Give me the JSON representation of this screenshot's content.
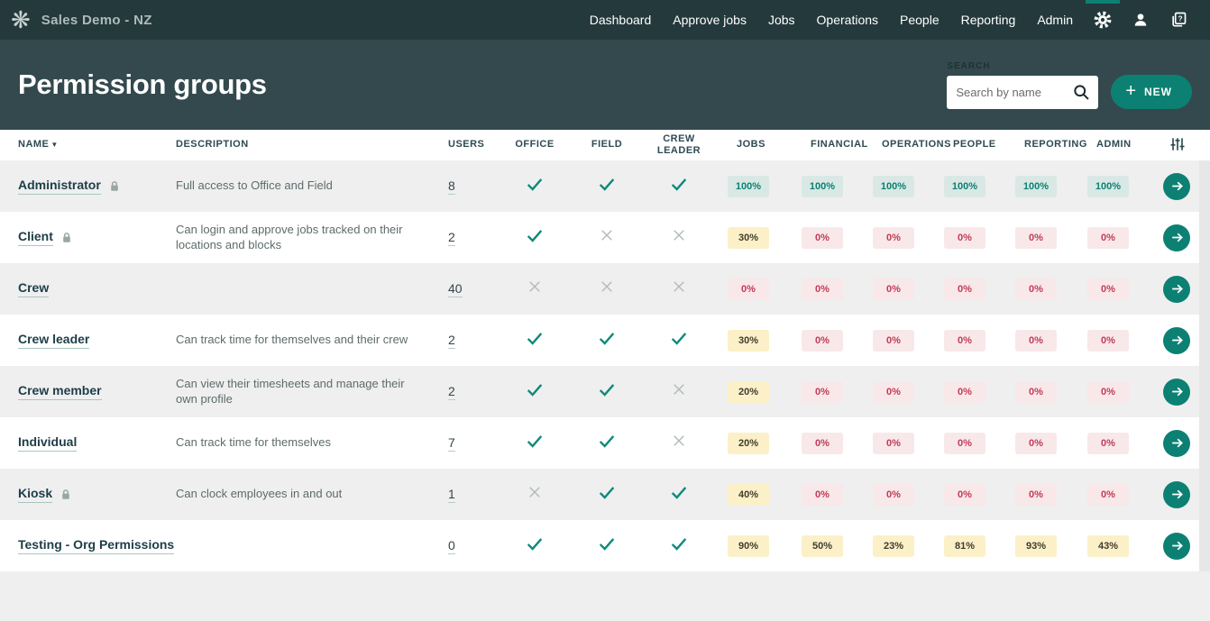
{
  "navbar": {
    "brand": "Sales Demo - NZ",
    "items": [
      "Dashboard",
      "Approve jobs",
      "Jobs",
      "Operations",
      "People",
      "Reporting",
      "Admin"
    ]
  },
  "header": {
    "title": "Permission groups",
    "search_label": "SEARCH",
    "search_placeholder": "Search by name",
    "new_button": "NEW"
  },
  "table": {
    "columns": [
      "NAME",
      "DESCRIPTION",
      "USERS",
      "OFFICE",
      "FIELD",
      "CREW LEADER",
      "JOBS",
      "FINANCIAL",
      "OPERATIONS",
      "PEOPLE",
      "REPORTING",
      "ADMIN"
    ],
    "rows": [
      {
        "name": "Administrator",
        "locked": true,
        "description": "Full access to Office and Field",
        "users": "8",
        "office": true,
        "field": true,
        "crew_leader": true,
        "jobs": "100%",
        "financial": "100%",
        "operations": "100%",
        "people": "100%",
        "reporting": "100%",
        "admin": "100%"
      },
      {
        "name": "Client",
        "locked": true,
        "description": "Can login and approve jobs tracked on their locations and blocks",
        "users": "2",
        "office": true,
        "field": false,
        "crew_leader": false,
        "jobs": "30%",
        "financial": "0%",
        "operations": "0%",
        "people": "0%",
        "reporting": "0%",
        "admin": "0%"
      },
      {
        "name": "Crew",
        "locked": false,
        "description": "",
        "users": "40",
        "office": false,
        "field": false,
        "crew_leader": false,
        "jobs": "0%",
        "financial": "0%",
        "operations": "0%",
        "people": "0%",
        "reporting": "0%",
        "admin": "0%"
      },
      {
        "name": "Crew leader",
        "locked": false,
        "description": "Can track time for themselves and their crew",
        "users": "2",
        "office": true,
        "field": true,
        "crew_leader": true,
        "jobs": "30%",
        "financial": "0%",
        "operations": "0%",
        "people": "0%",
        "reporting": "0%",
        "admin": "0%"
      },
      {
        "name": "Crew member",
        "locked": false,
        "description": "Can view their timesheets and manage their own profile",
        "users": "2",
        "office": true,
        "field": true,
        "crew_leader": false,
        "jobs": "20%",
        "financial": "0%",
        "operations": "0%",
        "people": "0%",
        "reporting": "0%",
        "admin": "0%"
      },
      {
        "name": "Individual",
        "locked": false,
        "description": "Can track time for themselves",
        "users": "7",
        "office": true,
        "field": true,
        "crew_leader": false,
        "jobs": "20%",
        "financial": "0%",
        "operations": "0%",
        "people": "0%",
        "reporting": "0%",
        "admin": "0%"
      },
      {
        "name": "Kiosk",
        "locked": true,
        "description": "Can clock employees in and out",
        "users": "1",
        "office": false,
        "field": true,
        "crew_leader": true,
        "jobs": "40%",
        "financial": "0%",
        "operations": "0%",
        "people": "0%",
        "reporting": "0%",
        "admin": "0%"
      },
      {
        "name": "Testing - Org Permissions",
        "locked": false,
        "description": "",
        "users": "0",
        "office": true,
        "field": true,
        "crew_leader": true,
        "jobs": "90%",
        "financial": "50%",
        "operations": "23%",
        "people": "81%",
        "reporting": "93%",
        "admin": "43%"
      }
    ]
  },
  "colors": {
    "navbar_bg": "#24393c",
    "header_bg": "#33494d",
    "accent": "#0c8173",
    "check": "#0e8a7b",
    "cross": "#b3bbbc",
    "row_alt": "#efefef",
    "badge_full_bg": "#d9e8e5",
    "badge_full_text": "#0a8172",
    "badge_mid_bg": "#fbf0c7",
    "badge_mid_text": "#3f3c2d",
    "badge_low_bg": "#f8e8e9",
    "badge_low_text": "#c23b56"
  }
}
